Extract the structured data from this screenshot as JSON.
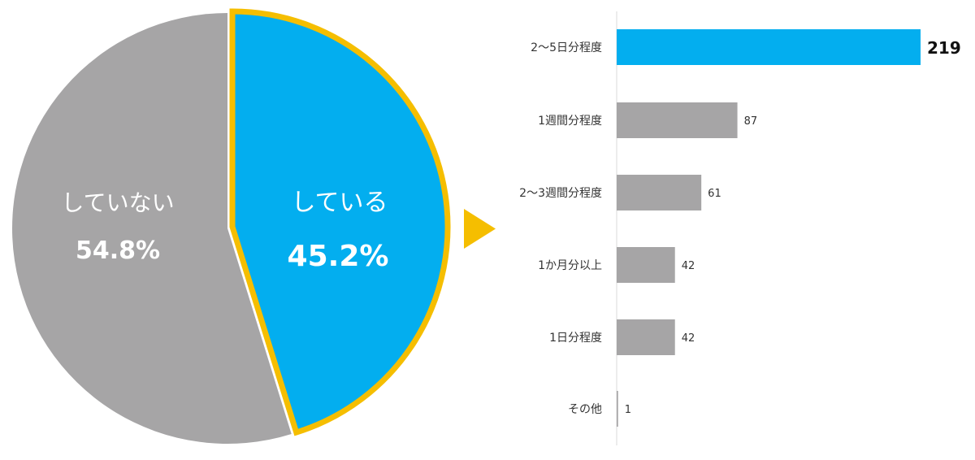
{
  "colors": {
    "highlight": "#03AEEF",
    "neutral": "#A6A5A6",
    "outline": "#F5BE00",
    "axis": "#D9D9D9",
    "text": "#333333",
    "label_light": "#FFFFFF"
  },
  "chart_data": [
    {
      "type": "pie",
      "slices": [
        {
          "label": "している",
          "value": 45.2,
          "value_text": "45.2%",
          "color": "#03AEEF",
          "highlighted": true
        },
        {
          "label": "していない",
          "value": 54.8,
          "value_text": "54.8%",
          "color": "#A6A5A6",
          "highlighted": false
        }
      ]
    },
    {
      "type": "bar",
      "orientation": "horizontal",
      "categories": [
        "2～5日分程度",
        "1週間分程度",
        "2～3週間分程度",
        "1か月分以上",
        "1日分程度",
        "その他"
      ],
      "values": [
        219,
        87,
        61,
        42,
        42,
        1
      ],
      "highlight_index": 0,
      "xlim": [
        0,
        219
      ]
    }
  ],
  "arrow_icon": "triangle-right-icon"
}
